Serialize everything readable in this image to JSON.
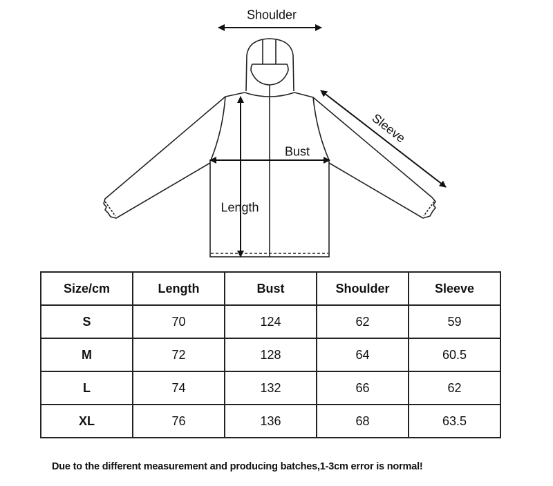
{
  "diagram": {
    "labels": {
      "shoulder": "Shoulder",
      "sleeve": "Sleeve",
      "bust": "Bust",
      "length": "Length"
    }
  },
  "table": {
    "headers": [
      "Size/cm",
      "Length",
      "Bust",
      "Shoulder",
      "Sleeve"
    ],
    "rows": [
      [
        "S",
        "70",
        "124",
        "62",
        "59"
      ],
      [
        "M",
        "72",
        "128",
        "64",
        "60.5"
      ],
      [
        "L",
        "74",
        "132",
        "66",
        "62"
      ],
      [
        "XL",
        "76",
        "136",
        "68",
        "63.5"
      ]
    ]
  },
  "note": "Due to the different measurement and producing batches,1-3cm error is normal!"
}
